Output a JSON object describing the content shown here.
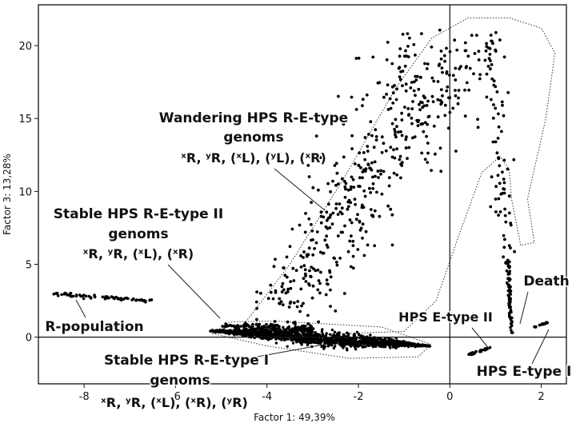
{
  "chart_data": {
    "type": "scatter",
    "xlabel": "Factor 1: 49,39%",
    "ylabel": "Factor 3: 13,28%",
    "xlim": [
      -9.0,
      2.55
    ],
    "ylim": [
      -3.2,
      22.8
    ],
    "xticks": [
      -8,
      -6,
      -4,
      -2,
      0,
      2
    ],
    "yticks": [
      0,
      5,
      10,
      15,
      20
    ],
    "grid": false,
    "clusters": [
      {
        "key": "r_population",
        "x_range": [
          -8.7,
          -6.5
        ],
        "y_range": [
          2.5,
          3.0
        ]
      },
      {
        "key": "stable_ii",
        "x_range": [
          -5.0,
          -3.0
        ],
        "y_range": [
          0.3,
          1.0
        ]
      },
      {
        "key": "stable_i",
        "x_range": [
          -5.2,
          -0.5
        ],
        "y_range": [
          -1.2,
          0.6
        ]
      },
      {
        "key": "wandering",
        "x_range": [
          -4.5,
          1.1
        ],
        "y_range": [
          0.0,
          21.0
        ]
      },
      {
        "key": "e_type_ii",
        "x_range": [
          0.4,
          0.9
        ],
        "y_range": [
          -1.2,
          -0.7
        ]
      },
      {
        "key": "death",
        "x_range": [
          1.25,
          1.45
        ],
        "y_range": [
          0.0,
          5.3
        ]
      },
      {
        "key": "e_type_i",
        "x_range": [
          1.85,
          2.15
        ],
        "y_range": [
          0.7,
          1.0
        ]
      }
    ],
    "annotations": {
      "wandering": {
        "lines": [
          "Wandering HPS R-E-type",
          "genoms"
        ],
        "formula": "ˣR, ʸR, (ˣL), (ʸL), (ˣR)"
      },
      "stable_ii": {
        "lines": [
          "Stable HPS R-E-type II",
          "genoms"
        ],
        "formula": "ˣR, ʸR, (ˣL), (ˣR)"
      },
      "r_population": {
        "lines": [
          "R-population"
        ]
      },
      "stable_i": {
        "lines": [
          "Stable HPS R-E-type I",
          "genoms"
        ],
        "formula": "ˣR, ʸR, (ˣL), (ˣR), (ʸR)"
      },
      "e_type_ii": {
        "lines": [
          "HPS E-type II"
        ]
      },
      "death": {
        "lines": [
          "Death"
        ]
      },
      "e_type_i": {
        "lines": [
          "HPS E-type I"
        ]
      }
    }
  }
}
